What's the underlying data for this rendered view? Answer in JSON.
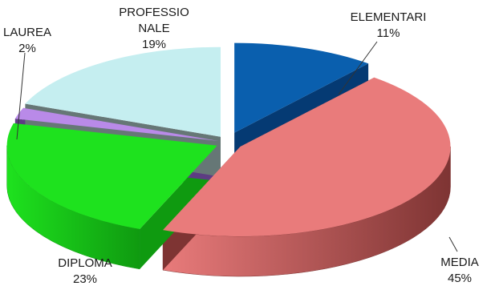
{
  "chart_data": {
    "type": "pie",
    "subtype": "3d-exploded",
    "title": "",
    "categories": [
      "ELEMENTARI",
      "MEDIA",
      "DIPLOMA",
      "LAUREA",
      "PROFESSIONALE"
    ],
    "values": [
      11,
      45,
      23,
      2,
      19
    ],
    "value_labels": [
      "11%",
      "45%",
      "23%",
      "2%",
      "19%"
    ],
    "name_labels": [
      [
        "ELEMENTARI"
      ],
      [
        "MEDIA"
      ],
      [
        "DIPLOMA"
      ],
      [
        "LAUREA"
      ],
      [
        "PROFESSIO",
        "NALE"
      ]
    ],
    "colors": [
      "#0a5fae",
      "#e97b7b",
      "#1ee21e",
      "#b98ae8",
      "#c5eef0"
    ],
    "side_colors": [
      "#053a73",
      "#7e3433",
      "#0f9a10",
      "#5d3c82",
      "#667776"
    ],
    "legend": "none",
    "leader_lines": true
  }
}
